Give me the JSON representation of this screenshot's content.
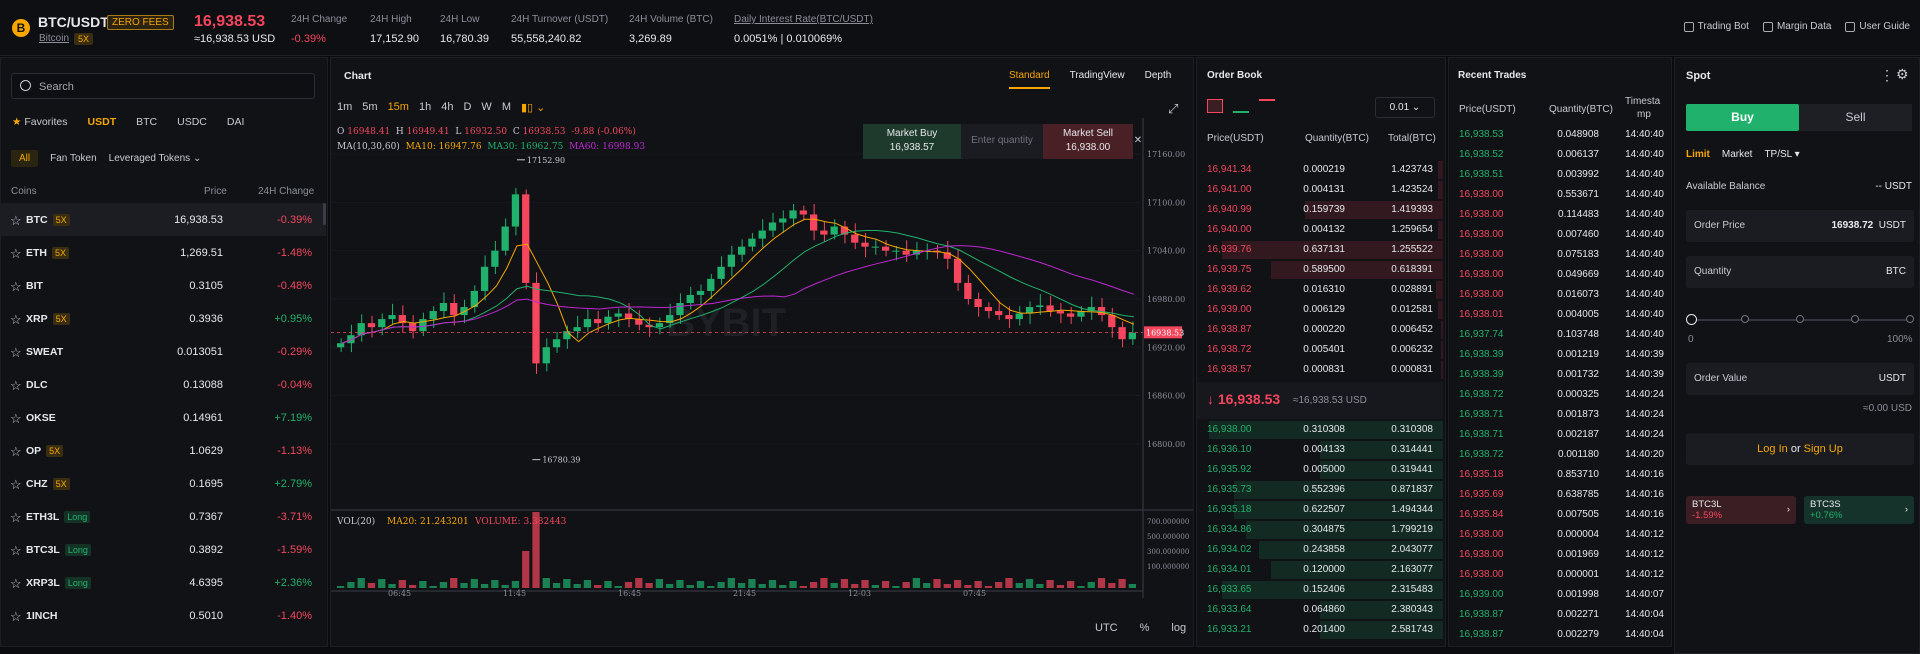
{
  "header": {
    "logo": "B",
    "pair": "BTC/USDT",
    "zero_fees": "ZERO FEES",
    "underlying": "Bitcoin",
    "leverage": "5X",
    "last_price": "16,938.53",
    "last_price_usd": "≈16,938.53 USD",
    "stats": [
      {
        "label": "24H Change",
        "value": "-0.39%",
        "color": "red",
        "x": 291
      },
      {
        "label": "24H High",
        "value": "17,152.90",
        "color": "white",
        "x": 370
      },
      {
        "label": "24H Low",
        "value": "16,780.39",
        "color": "white",
        "x": 440
      },
      {
        "label": "24H Turnover (USDT)",
        "value": "55,558,240.82",
        "color": "white",
        "x": 511
      },
      {
        "label": "24H Volume (BTC)",
        "value": "3,269.89",
        "color": "white",
        "x": 629
      },
      {
        "label": "Daily Interest Rate(BTC/USDT)",
        "value": "0.0051% | 0.010069%",
        "color": "white",
        "x": 734
      }
    ],
    "links": [
      "Trading Bot",
      "Margin Data",
      "User Guide"
    ]
  },
  "markets": {
    "search_placeholder": "Search",
    "tabs": [
      "Favorites",
      "USDT",
      "BTC",
      "USDC",
      "DAI"
    ],
    "subtabs": [
      "All",
      "Fan Token",
      "Leveraged Tokens"
    ],
    "col_coins": "Coins",
    "col_price": "Price",
    "col_change": "24H Change",
    "rows": [
      {
        "coin": "BTC",
        "badge": "5X",
        "price": "16,938.53",
        "change": "-0.39%"
      },
      {
        "coin": "ETH",
        "badge": "5X",
        "price": "1,269.51",
        "change": "-1.48%"
      },
      {
        "coin": "BIT",
        "badge": "",
        "price": "0.3105",
        "change": "-0.48%"
      },
      {
        "coin": "XRP",
        "badge": "5X",
        "price": "0.3936",
        "change": "+0.95%"
      },
      {
        "coin": "SWEAT",
        "badge": "",
        "price": "0.013051",
        "change": "-0.29%"
      },
      {
        "coin": "DLC",
        "badge": "",
        "price": "0.13088",
        "change": "-0.04%"
      },
      {
        "coin": "OKSE",
        "badge": "",
        "price": "0.14961",
        "change": "+7.19%"
      },
      {
        "coin": "OP",
        "badge": "5X",
        "price": "1.0629",
        "change": "-1.13%"
      },
      {
        "coin": "CHZ",
        "badge": "5X",
        "price": "0.1695",
        "change": "+2.79%"
      },
      {
        "coin": "ETH3L",
        "badge": "Long",
        "price": "0.7367",
        "change": "-3.71%"
      },
      {
        "coin": "BTC3L",
        "badge": "Long",
        "price": "0.3892",
        "change": "-1.59%"
      },
      {
        "coin": "XRP3L",
        "badge": "Long",
        "price": "4.6395",
        "change": "+2.36%"
      },
      {
        "coin": "1INCH",
        "badge": "",
        "price": "0.5010",
        "change": "-1.40%"
      }
    ]
  },
  "chart": {
    "title": "Chart",
    "views": [
      "Standard",
      "TradingView",
      "Depth"
    ],
    "timeframes": [
      "1m",
      "5m",
      "15m",
      "1h",
      "4h",
      "D",
      "W",
      "M"
    ],
    "ohlc": {
      "o": "16948.41",
      "h": "16949.41",
      "l": "16932.50",
      "c": "16938.53",
      "chg": "-9.88 (-0.06%)"
    },
    "ma": {
      "label": "MA(10,30,60)",
      "ma10": "MA10: 16947.76",
      "ma30": "MA30: 16962.75",
      "ma60": "MA60: 16998.93"
    },
    "market_buy": "Market Buy",
    "market_buy_price": "16,938.57",
    "qty_placeholder": "Enter quantity",
    "market_sell": "Market Sell",
    "market_sell_price": "16,938.00",
    "high_label": "17152.90",
    "low_label": "16780.39",
    "price_tag": "16938.53",
    "y_ticks": [
      "17160.00",
      "17100.00",
      "17040.00",
      "16980.00",
      "16920.00",
      "16860.00",
      "16800.00"
    ],
    "x_ticks": [
      "06:45",
      "11:45",
      "16:45",
      "21:45",
      "12-03",
      "07:45"
    ],
    "vol": {
      "label": "VOL(20)",
      "ma20": "MA20: 21.243201",
      "volume": "VOLUME: 3.382443",
      "ticks": [
        "700.000000",
        "500.000000",
        "300.000000",
        "100.000000"
      ]
    },
    "footer": [
      "UTC",
      "%",
      "log"
    ],
    "watermark": "BYBIT"
  },
  "orderbook": {
    "title": "Order Book",
    "precision": "0.01",
    "headers": [
      "Price(USDT)",
      "Quantity(BTC)",
      "Total(BTC)"
    ],
    "asks": [
      [
        "16,941.34",
        "0.000219",
        "1.423743",
        0.02
      ],
      [
        "16,941.00",
        "0.004131",
        "1.423524",
        0.02
      ],
      [
        "16,940.99",
        "0.159739",
        "1.419393",
        0.56
      ],
      [
        "16,940.00",
        "0.004132",
        "1.259654",
        0.02
      ],
      [
        "16,939.76",
        "0.637131",
        "1.255522",
        0.9
      ],
      [
        "16,939.75",
        "0.589500",
        "0.618391",
        0.7
      ],
      [
        "16,939.62",
        "0.016310",
        "0.028891",
        0.03
      ],
      [
        "16,939.00",
        "0.006129",
        "0.012581",
        0.02
      ],
      [
        "16,938.87",
        "0.000220",
        "0.006452",
        0.01
      ],
      [
        "16,938.72",
        "0.005401",
        "0.006232",
        0.01
      ],
      [
        "16,938.57",
        "0.000831",
        "0.000831",
        0.01
      ]
    ],
    "mid": "16,938.53",
    "mid_usd": "≈16,938.53 USD",
    "bids": [
      [
        "16,938.00",
        "0.310308",
        "0.310308",
        0.95
      ],
      [
        "16,936.10",
        "0.004133",
        "0.314441",
        0.5
      ],
      [
        "16,935.92",
        "0.005000",
        "0.319441",
        0.5
      ],
      [
        "16,935.73",
        "0.552396",
        "0.871837",
        0.85
      ],
      [
        "16,935.18",
        "0.622507",
        "1.494344",
        0.85
      ],
      [
        "16,934.86",
        "0.304875",
        "1.799219",
        0.8
      ],
      [
        "16,934.02",
        "0.243858",
        "2.043077",
        0.75
      ],
      [
        "16,934.01",
        "0.120000",
        "2.163077",
        0.7
      ],
      [
        "16,933.65",
        "0.152406",
        "2.315483",
        0.9
      ],
      [
        "16,933.64",
        "0.064860",
        "2.380343",
        0.5
      ],
      [
        "16,933.21",
        "0.201400",
        "2.581743",
        0.5
      ]
    ]
  },
  "trades": {
    "title": "Recent Trades",
    "headers": [
      "Price(USDT)",
      "Quantity(BTC)",
      "Timesta",
      "mp"
    ],
    "rows": [
      [
        "16,938.53",
        "0.048908",
        "14:40:40",
        "g"
      ],
      [
        "16,938.52",
        "0.006137",
        "14:40:40",
        "g"
      ],
      [
        "16,938.51",
        "0.003992",
        "14:40:40",
        "g"
      ],
      [
        "16,938.00",
        "0.553671",
        "14:40:40",
        "r"
      ],
      [
        "16,938.00",
        "0.114483",
        "14:40:40",
        "r"
      ],
      [
        "16,938.00",
        "0.007460",
        "14:40:40",
        "r"
      ],
      [
        "16,938.00",
        "0.075183",
        "14:40:40",
        "r"
      ],
      [
        "16,938.00",
        "0.049669",
        "14:40:40",
        "r"
      ],
      [
        "16,938.00",
        "0.016073",
        "14:40:40",
        "r"
      ],
      [
        "16,938.01",
        "0.004005",
        "14:40:40",
        "r"
      ],
      [
        "16,937.74",
        "0.103748",
        "14:40:40",
        "g"
      ],
      [
        "16,938.39",
        "0.001219",
        "14:40:39",
        "g"
      ],
      [
        "16,938.39",
        "0.001732",
        "14:40:39",
        "g"
      ],
      [
        "16,938.72",
        "0.000325",
        "14:40:24",
        "g"
      ],
      [
        "16,938.71",
        "0.001873",
        "14:40:24",
        "g"
      ],
      [
        "16,938.71",
        "0.002187",
        "14:40:24",
        "g"
      ],
      [
        "16,938.72",
        "0.001180",
        "14:40:20",
        "g"
      ],
      [
        "16,935.18",
        "0.853710",
        "14:40:16",
        "r"
      ],
      [
        "16,935.69",
        "0.638785",
        "14:40:16",
        "r"
      ],
      [
        "16,935.84",
        "0.007505",
        "14:40:16",
        "r"
      ],
      [
        "16,938.00",
        "0.000004",
        "14:40:12",
        "r"
      ],
      [
        "16,938.00",
        "0.001969",
        "14:40:12",
        "r"
      ],
      [
        "16,938.00",
        "0.000001",
        "14:40:12",
        "r"
      ],
      [
        "16,939.00",
        "0.001998",
        "14:40:07",
        "g"
      ],
      [
        "16,938.87",
        "0.002271",
        "14:40:04",
        "g"
      ],
      [
        "16,938.87",
        "0.002279",
        "14:40:04",
        "g"
      ]
    ]
  },
  "spot": {
    "title": "Spot",
    "buy": "Buy",
    "sell": "Sell",
    "order_types": [
      "Limit",
      "Market",
      "TP/SL"
    ],
    "available_balance_label": "Available Balance",
    "available_balance_value": "-- USDT",
    "order_price_label": "Order Price",
    "order_price_value": "16938.72",
    "order_price_unit": "USDT",
    "quantity_label": "Quantity",
    "quantity_unit": "BTC",
    "slider_min": "0",
    "slider_max": "100%",
    "order_value_label": "Order Value",
    "order_value_unit": "USDT",
    "order_value_est": "≈0.00 USD",
    "login": "Log In",
    "or": "or",
    "signup": "Sign Up",
    "leverage_tokens": [
      {
        "name": "BTC3L",
        "change": "-1.59%"
      },
      {
        "name": "BTC3S",
        "change": "+0.76%"
      }
    ]
  }
}
